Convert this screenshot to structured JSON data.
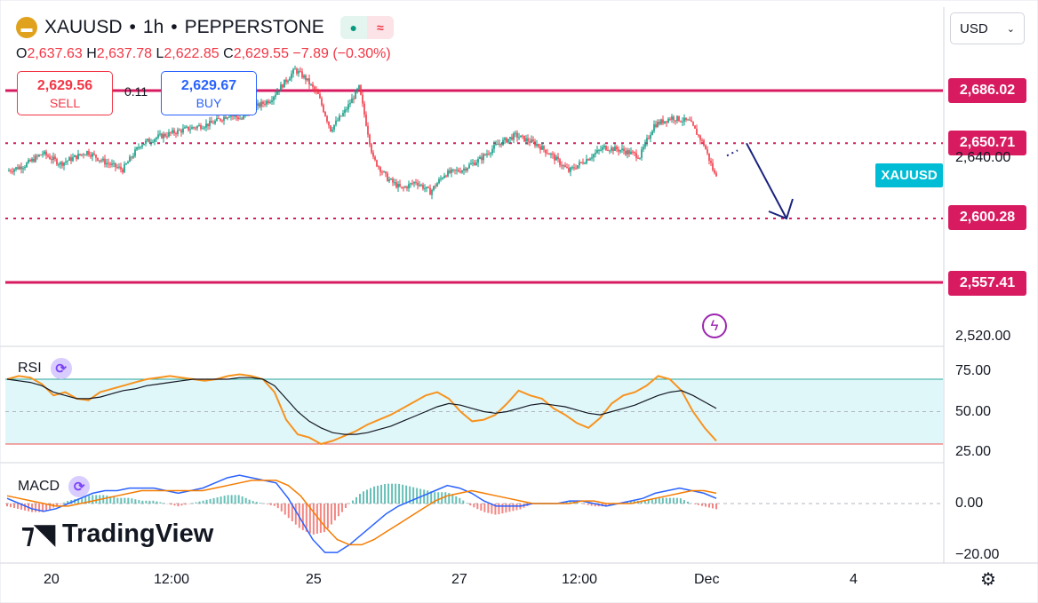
{
  "header": {
    "symbol": "XAUUSD",
    "sep1": "•",
    "interval": "1h",
    "sep2": "•",
    "broker": "PEPPERSTONE",
    "ohlc": {
      "o_key": "O",
      "o": "2,637.63",
      "h_key": "H",
      "h": "2,637.78",
      "l_key": "L",
      "l": "2,622.85",
      "c_key": "C",
      "c": "2,629.55",
      "change": "−7.89 (−0.30%)"
    }
  },
  "trade": {
    "sell_price": "2,629.56",
    "sell_label": "SELL",
    "buy_price": "2,629.67",
    "buy_label": "BUY",
    "spread": "0.11"
  },
  "currency_select": {
    "value": "USD"
  },
  "symbol_tag": "XAUUSD",
  "colors": {
    "up": "#089981",
    "down": "#f23645",
    "level": "#d81b60",
    "arrow": "#1a237e",
    "rsi_line": "#f7931e",
    "rsi_ma": "#131722",
    "rsi_band": "#e0f7fa",
    "macd_line": "#2962ff",
    "signal_line": "#f57c00"
  },
  "tradingview_logo": "TradingView",
  "chart_data": [
    {
      "type": "candlestick",
      "y_axis_ticks": [
        "2,640.00",
        "2,520.00"
      ],
      "price_levels": [
        {
          "label": "2,686.02",
          "value": 2686.02,
          "style": "solid"
        },
        {
          "label": "2,650.71",
          "value": 2650.71,
          "style": "dotted"
        },
        {
          "label": "2,600.28",
          "value": 2600.28,
          "style": "dotted"
        },
        {
          "label": "2,557.41",
          "value": 2557.41,
          "style": "solid"
        }
      ],
      "x_axis_labels": [
        "20",
        "12:00",
        "25",
        "27",
        "12:00",
        "Dec",
        "4"
      ],
      "projection": {
        "from": 2650.71,
        "to": 2600.28
      },
      "close_path": [
        [
          0,
          2632
        ],
        [
          10,
          2636
        ],
        [
          20,
          2644
        ],
        [
          30,
          2637
        ],
        [
          45,
          2645
        ],
        [
          55,
          2638
        ],
        [
          65,
          2633
        ],
        [
          75,
          2650
        ],
        [
          85,
          2655
        ],
        [
          100,
          2660
        ],
        [
          115,
          2664
        ],
        [
          125,
          2670
        ],
        [
          132,
          2667
        ],
        [
          140,
          2675
        ],
        [
          148,
          2680
        ],
        [
          155,
          2690
        ],
        [
          162,
          2700
        ],
        [
          168,
          2694
        ],
        [
          175,
          2683
        ],
        [
          182,
          2660
        ],
        [
          190,
          2672
        ],
        [
          198,
          2688
        ],
        [
          206,
          2640
        ],
        [
          214,
          2627
        ],
        [
          222,
          2620
        ],
        [
          230,
          2625
        ],
        [
          238,
          2618
        ],
        [
          246,
          2630
        ],
        [
          256,
          2633
        ],
        [
          266,
          2640
        ],
        [
          276,
          2650
        ],
        [
          286,
          2656
        ],
        [
          298,
          2650
        ],
        [
          306,
          2643
        ],
        [
          316,
          2632
        ],
        [
          326,
          2640
        ],
        [
          336,
          2648
        ],
        [
          346,
          2646
        ],
        [
          356,
          2642
        ],
        [
          364,
          2663
        ],
        [
          374,
          2668
        ],
        [
          384,
          2665
        ],
        [
          392,
          2650
        ],
        [
          398,
          2630
        ]
      ]
    },
    {
      "type": "line",
      "name": "RSI",
      "y_axis_ticks": [
        "75.00",
        "50.00",
        "25.00"
      ],
      "band": [
        30,
        70
      ],
      "series": [
        {
          "values": [
            70,
            72,
            71,
            67,
            60,
            62,
            58,
            57,
            62,
            64,
            66,
            68,
            70,
            71,
            72,
            71,
            70,
            69,
            70,
            72,
            73,
            72,
            70,
            62,
            45,
            36,
            34,
            30,
            32,
            35,
            38,
            42,
            45,
            48,
            52,
            56,
            60,
            62,
            58,
            50,
            44,
            45,
            48,
            55,
            63,
            60,
            58,
            52,
            48,
            43,
            40,
            46,
            55,
            60,
            62,
            66,
            72,
            70,
            63,
            50,
            40,
            32
          ]
        },
        {
          "values": [
            70,
            69,
            68,
            66,
            62,
            60,
            58,
            58,
            59,
            61,
            63,
            64,
            66,
            67,
            68,
            69,
            70,
            70,
            70,
            70,
            71,
            71,
            70,
            66,
            58,
            50,
            44,
            40,
            37,
            36,
            36,
            37,
            39,
            41,
            44,
            47,
            50,
            53,
            55,
            54,
            52,
            50,
            49,
            50,
            52,
            54,
            55,
            54,
            53,
            51,
            49,
            48,
            50,
            52,
            54,
            57,
            60,
            62,
            63,
            60,
            56,
            52
          ]
        }
      ]
    },
    {
      "type": "line",
      "name": "MACD",
      "y_axis_ticks": [
        "0.00",
        "−20.00"
      ],
      "series": [
        {
          "values": [
            2,
            0,
            -2,
            -3,
            -2,
            0,
            2,
            4,
            5,
            5,
            6,
            6,
            6,
            5,
            4,
            5,
            6,
            8,
            10,
            11,
            10,
            9,
            8,
            2,
            -6,
            -14,
            -19,
            -19,
            -16,
            -12,
            -8,
            -4,
            -1,
            1,
            3,
            5,
            7,
            6,
            4,
            1,
            -1,
            -1,
            -1,
            0,
            0,
            0,
            1,
            1,
            0,
            -1,
            0,
            1,
            2,
            4,
            5,
            6,
            5,
            4,
            2
          ]
        },
        {
          "values": [
            3,
            2,
            1,
            0,
            -1,
            -1,
            0,
            1,
            2,
            3,
            4,
            5,
            5,
            5,
            5,
            5,
            5,
            6,
            7,
            8,
            9,
            9,
            9,
            7,
            3,
            -3,
            -9,
            -14,
            -16,
            -16,
            -14,
            -11,
            -8,
            -5,
            -2,
            1,
            3,
            4,
            5,
            4,
            3,
            2,
            1,
            0,
            0,
            0,
            0,
            1,
            1,
            0,
            0,
            0,
            1,
            2,
            3,
            4,
            5,
            5,
            4
          ]
        }
      ]
    }
  ]
}
